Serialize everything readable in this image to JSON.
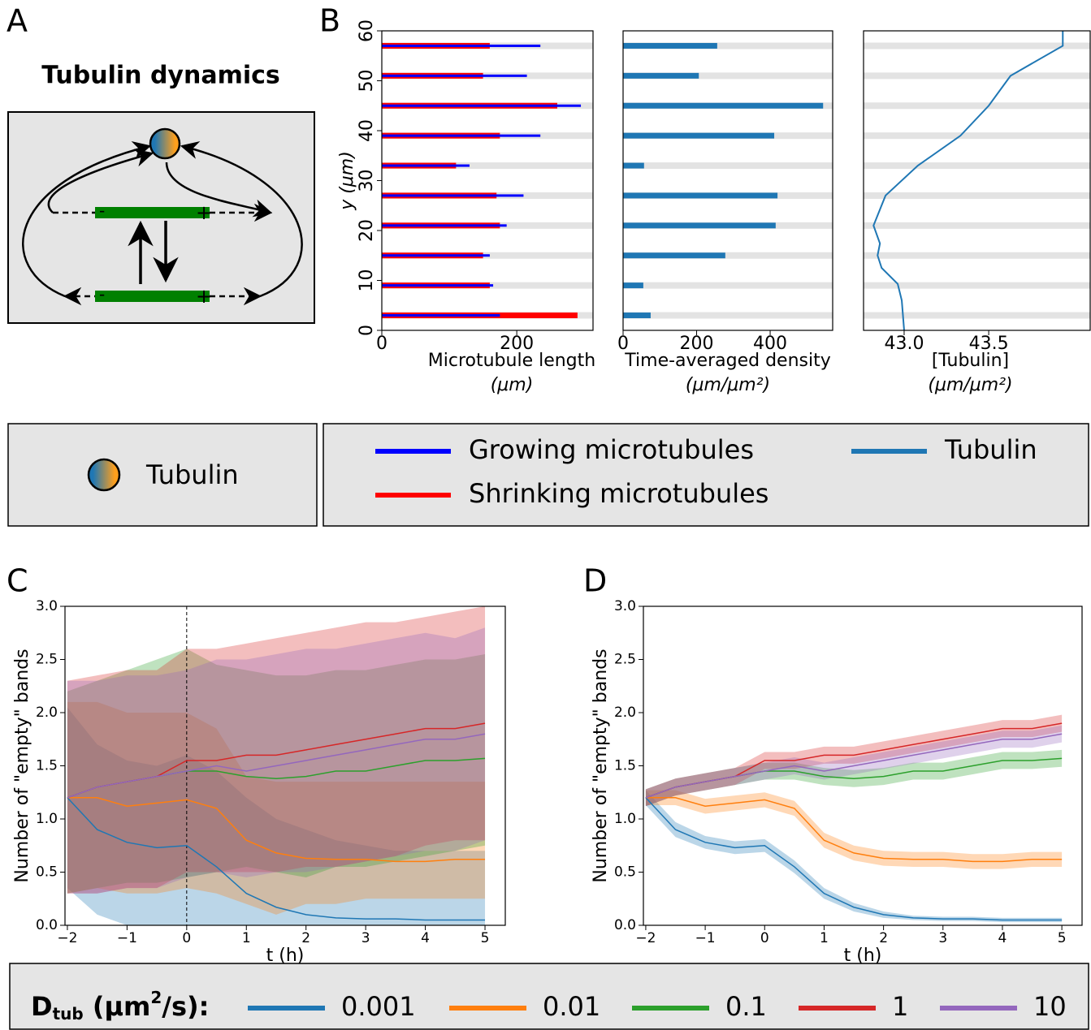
{
  "panel_labels": [
    "A",
    "B",
    "C",
    "D"
  ],
  "diagram": {
    "title": "Tubulin dynamics",
    "minus": "-",
    "plus": "+",
    "legend": "Tubulin"
  },
  "legend_title": {
    "main": "D",
    "sub": "tub",
    "text": " (μm",
    "sup": "2",
    "end": "/s):"
  },
  "chart_data": [
    {
      "type": "hbar",
      "xlabel": "Microtubule length",
      "xunit": "(μm)",
      "ylabel": "y (μm)",
      "y": [
        3,
        9,
        15,
        21,
        27,
        33,
        39,
        45,
        51,
        57
      ],
      "series": [
        {
          "name": "Growing microtubules",
          "color": "#0000ff",
          "values": [
            175,
            165,
            160,
            185,
            210,
            130,
            235,
            295,
            215,
            235
          ]
        },
        {
          "name": "Shrinking microtubules",
          "color": "#ff0000",
          "values": [
            290,
            160,
            150,
            175,
            170,
            110,
            175,
            260,
            150,
            160
          ]
        }
      ],
      "xlim": [
        0,
        313
      ],
      "xticks": [
        0,
        200
      ],
      "ylim": [
        0,
        60
      ],
      "yticks": [
        0,
        10,
        20,
        30,
        40,
        50,
        60
      ]
    },
    {
      "type": "hbar",
      "xlabel": "Time-averaged density",
      "xunit": "(μm/μm²)",
      "y": [
        3,
        9,
        15,
        21,
        27,
        33,
        39,
        45,
        51,
        57
      ],
      "color": "#1f77b4",
      "values": [
        75,
        55,
        278,
        415,
        420,
        57,
        411,
        544,
        206,
        256
      ],
      "xlim": [
        0,
        570
      ],
      "xticks": [
        0,
        200,
        400
      ],
      "ylim": [
        0,
        60
      ]
    },
    {
      "type": "line_h",
      "xlabel": "[Tubulin]",
      "xunit": "(μm/μm²)",
      "bands": [
        3,
        9,
        15,
        21,
        27,
        33,
        39,
        45,
        51,
        57
      ],
      "y": [
        0,
        6,
        9.3,
        12.5,
        15,
        17.4,
        21,
        27,
        33,
        39,
        45,
        51,
        57,
        60
      ],
      "series": [
        {
          "name": "Tubulin",
          "color": "#1f77b4",
          "values": [
            43.0,
            42.986,
            42.962,
            42.867,
            42.843,
            42.857,
            42.819,
            42.89,
            43.081,
            43.333,
            43.5,
            43.629,
            43.938,
            43.938
          ]
        }
      ],
      "xlim": [
        42.76,
        44.1
      ],
      "xticks": [
        {
          "value": 43.0,
          "label": "43.0"
        },
        {
          "value": 43.5,
          "label": "43.5"
        }
      ],
      "ylim": [
        0,
        60
      ]
    },
    {
      "type": "line",
      "xlabel": "t (h)",
      "ylabel": "Number of \"empty\" bands",
      "vline": 0,
      "band_opacity": 0.3,
      "x": [
        -2,
        -1.5,
        -1,
        -0.5,
        0,
        0.5,
        1,
        1.5,
        2,
        2.5,
        3,
        3.5,
        4,
        4.5,
        5
      ],
      "xlim": [
        -2.04,
        5.34
      ],
      "ylim": [
        0,
        3
      ],
      "xticks": [
        {
          "value": -2,
          "label": "−2"
        },
        {
          "value": -1,
          "label": "−1"
        },
        0,
        1,
        2,
        3,
        4,
        5
      ],
      "yticks": [
        {
          "value": 0,
          "label": "0.0"
        },
        0.5,
        {
          "value": 1,
          "label": "1.0"
        },
        1.5,
        {
          "value": 2,
          "label": "2.0"
        },
        2.5,
        {
          "value": 3,
          "label": "3.0"
        }
      ],
      "series": [
        {
          "name": "0.001",
          "color": "#1f77b4",
          "values": [
            1.2,
            0.9,
            0.78,
            0.73,
            0.75,
            0.55,
            0.3,
            0.17,
            0.1,
            0.07,
            0.06,
            0.06,
            0.05,
            0.05,
            0.05
          ],
          "lower": [
            0.35,
            0.1,
            0,
            0,
            0,
            0,
            0,
            0,
            0,
            0,
            0,
            0,
            0,
            0,
            0
          ],
          "upper": [
            2.05,
            1.7,
            1.55,
            1.5,
            1.6,
            1.45,
            1.2,
            1.0,
            0.9,
            0.8,
            0.75,
            0.7,
            0.7,
            0.7,
            0.7
          ]
        },
        {
          "name": "0.01",
          "color": "#ff7f0e",
          "values": [
            1.2,
            1.2,
            1.12,
            1.15,
            1.18,
            1.1,
            0.8,
            0.68,
            0.63,
            0.62,
            0.62,
            0.6,
            0.6,
            0.62,
            0.62
          ],
          "lower": [
            0.3,
            0.35,
            0.3,
            0.3,
            0.35,
            0.3,
            0.2,
            0.1,
            0.2,
            0.2,
            0.25,
            0.25,
            0.25,
            0.25,
            0.25
          ],
          "upper": [
            2.1,
            2.1,
            2.0,
            2.0,
            2.0,
            1.85,
            1.4,
            1.35,
            1.35,
            1.35,
            1.35,
            1.35,
            1.35,
            1.35,
            1.35
          ]
        },
        {
          "name": "0.1",
          "color": "#2ca02c",
          "values": [
            1.2,
            1.3,
            1.35,
            1.4,
            1.45,
            1.45,
            1.4,
            1.38,
            1.4,
            1.45,
            1.45,
            1.5,
            1.55,
            1.55,
            1.57
          ],
          "lower": [
            0.3,
            0.35,
            0.4,
            0.4,
            0.45,
            0.5,
            0.55,
            0.5,
            0.45,
            0.55,
            0.55,
            0.6,
            0.65,
            0.7,
            0.75
          ],
          "upper": [
            2.2,
            2.3,
            2.4,
            2.5,
            2.6,
            2.45,
            2.4,
            2.35,
            2.35,
            2.4,
            2.4,
            2.45,
            2.5,
            2.5,
            2.55
          ]
        },
        {
          "name": "1",
          "color": "#d62728",
          "values": [
            1.2,
            1.3,
            1.35,
            1.4,
            1.55,
            1.55,
            1.6,
            1.6,
            1.65,
            1.7,
            1.75,
            1.8,
            1.85,
            1.85,
            1.9
          ],
          "lower": [
            0.3,
            0.3,
            0.35,
            0.35,
            0.5,
            0.5,
            0.5,
            0.5,
            0.55,
            0.55,
            0.6,
            0.65,
            0.75,
            0.8,
            0.8
          ],
          "upper": [
            2.3,
            2.35,
            2.4,
            2.4,
            2.6,
            2.6,
            2.65,
            2.7,
            2.75,
            2.8,
            2.85,
            2.85,
            2.9,
            2.95,
            3.0
          ]
        },
        {
          "name": "10",
          "color": "#9467bd",
          "values": [
            1.2,
            1.3,
            1.35,
            1.4,
            1.45,
            1.5,
            1.45,
            1.5,
            1.55,
            1.6,
            1.65,
            1.7,
            1.75,
            1.75,
            1.8
          ],
          "lower": [
            0.3,
            0.3,
            0.35,
            0.35,
            0.45,
            0.5,
            0.45,
            0.5,
            0.5,
            0.55,
            0.6,
            0.65,
            0.7,
            0.7,
            0.8
          ],
          "upper": [
            2.3,
            2.3,
            2.35,
            2.35,
            2.4,
            2.5,
            2.5,
            2.55,
            2.6,
            2.6,
            2.65,
            2.7,
            2.75,
            2.7,
            2.8
          ]
        }
      ]
    },
    {
      "type": "line",
      "xlabel": "t (h)",
      "ylabel": "Number of \"empty\" bands",
      "band_opacity": 0.3,
      "x": [
        -2,
        -1.5,
        -1,
        -0.5,
        0,
        0.5,
        1,
        1.5,
        2,
        2.5,
        3,
        3.5,
        4,
        4.5,
        5
      ],
      "xlim": [
        -2.04,
        5.34
      ],
      "ylim": [
        0,
        3
      ],
      "xticks": [
        {
          "value": -2,
          "label": "−2"
        },
        {
          "value": -1,
          "label": "−1"
        },
        0,
        1,
        2,
        3,
        4,
        5
      ],
      "yticks": [
        {
          "value": 0,
          "label": "0.0"
        },
        0.5,
        {
          "value": 1,
          "label": "1.0"
        },
        1.5,
        {
          "value": 2,
          "label": "2.0"
        },
        2.5,
        {
          "value": 3,
          "label": "3.0"
        }
      ],
      "series": [
        {
          "name": "0.001",
          "color": "#1f77b4",
          "values": [
            1.2,
            0.9,
            0.78,
            0.73,
            0.75,
            0.55,
            0.3,
            0.17,
            0.1,
            0.07,
            0.06,
            0.06,
            0.05,
            0.05,
            0.05
          ],
          "lower": [
            1.13,
            0.83,
            0.72,
            0.67,
            0.69,
            0.49,
            0.25,
            0.13,
            0.07,
            0.05,
            0.04,
            0.04,
            0.03,
            0.03,
            0.03
          ],
          "upper": [
            1.27,
            0.97,
            0.84,
            0.79,
            0.81,
            0.61,
            0.35,
            0.21,
            0.13,
            0.09,
            0.08,
            0.08,
            0.07,
            0.07,
            0.07
          ]
        },
        {
          "name": "0.01",
          "color": "#ff7f0e",
          "values": [
            1.2,
            1.2,
            1.12,
            1.15,
            1.18,
            1.1,
            0.8,
            0.68,
            0.63,
            0.62,
            0.62,
            0.6,
            0.6,
            0.62,
            0.62
          ],
          "lower": [
            1.13,
            1.13,
            1.05,
            1.08,
            1.11,
            1.03,
            0.73,
            0.61,
            0.56,
            0.55,
            0.55,
            0.53,
            0.53,
            0.55,
            0.55
          ],
          "upper": [
            1.27,
            1.27,
            1.19,
            1.22,
            1.25,
            1.17,
            0.87,
            0.75,
            0.7,
            0.69,
            0.69,
            0.67,
            0.67,
            0.69,
            0.69
          ]
        },
        {
          "name": "0.1",
          "color": "#2ca02c",
          "values": [
            1.2,
            1.3,
            1.35,
            1.4,
            1.45,
            1.45,
            1.4,
            1.38,
            1.4,
            1.45,
            1.45,
            1.5,
            1.55,
            1.55,
            1.57
          ],
          "lower": [
            1.12,
            1.22,
            1.27,
            1.32,
            1.37,
            1.37,
            1.32,
            1.3,
            1.32,
            1.37,
            1.37,
            1.42,
            1.47,
            1.47,
            1.49
          ],
          "upper": [
            1.28,
            1.38,
            1.43,
            1.48,
            1.53,
            1.53,
            1.48,
            1.46,
            1.48,
            1.53,
            1.53,
            1.58,
            1.63,
            1.63,
            1.65
          ]
        },
        {
          "name": "1",
          "color": "#d62728",
          "values": [
            1.2,
            1.3,
            1.35,
            1.4,
            1.55,
            1.55,
            1.6,
            1.6,
            1.65,
            1.7,
            1.75,
            1.8,
            1.85,
            1.85,
            1.9
          ],
          "lower": [
            1.12,
            1.22,
            1.27,
            1.32,
            1.47,
            1.47,
            1.52,
            1.52,
            1.57,
            1.62,
            1.67,
            1.72,
            1.77,
            1.77,
            1.82
          ],
          "upper": [
            1.28,
            1.38,
            1.43,
            1.48,
            1.63,
            1.63,
            1.68,
            1.68,
            1.73,
            1.78,
            1.83,
            1.88,
            1.93,
            1.93,
            1.98
          ]
        },
        {
          "name": "10",
          "color": "#9467bd",
          "values": [
            1.2,
            1.3,
            1.35,
            1.4,
            1.45,
            1.5,
            1.45,
            1.5,
            1.55,
            1.6,
            1.65,
            1.7,
            1.75,
            1.75,
            1.8
          ],
          "lower": [
            1.12,
            1.22,
            1.27,
            1.32,
            1.37,
            1.42,
            1.37,
            1.42,
            1.47,
            1.52,
            1.57,
            1.62,
            1.67,
            1.67,
            1.72
          ],
          "upper": [
            1.28,
            1.38,
            1.43,
            1.48,
            1.53,
            1.58,
            1.53,
            1.58,
            1.63,
            1.68,
            1.73,
            1.78,
            1.83,
            1.83,
            1.88
          ]
        }
      ]
    }
  ]
}
